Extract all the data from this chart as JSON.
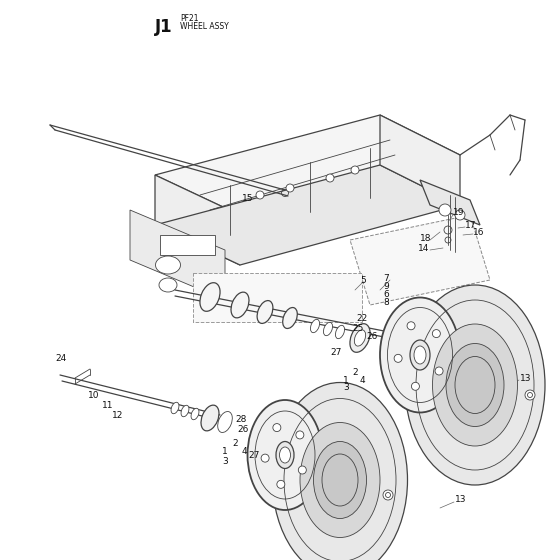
{
  "title": "J1",
  "sub1": "PF21",
  "sub2": "WHEEL ASSY",
  "bg": "#ffffff",
  "lc": "#444444",
  "dc": "#111111",
  "fig_w": 5.6,
  "fig_h": 5.6,
  "dpi": 100
}
